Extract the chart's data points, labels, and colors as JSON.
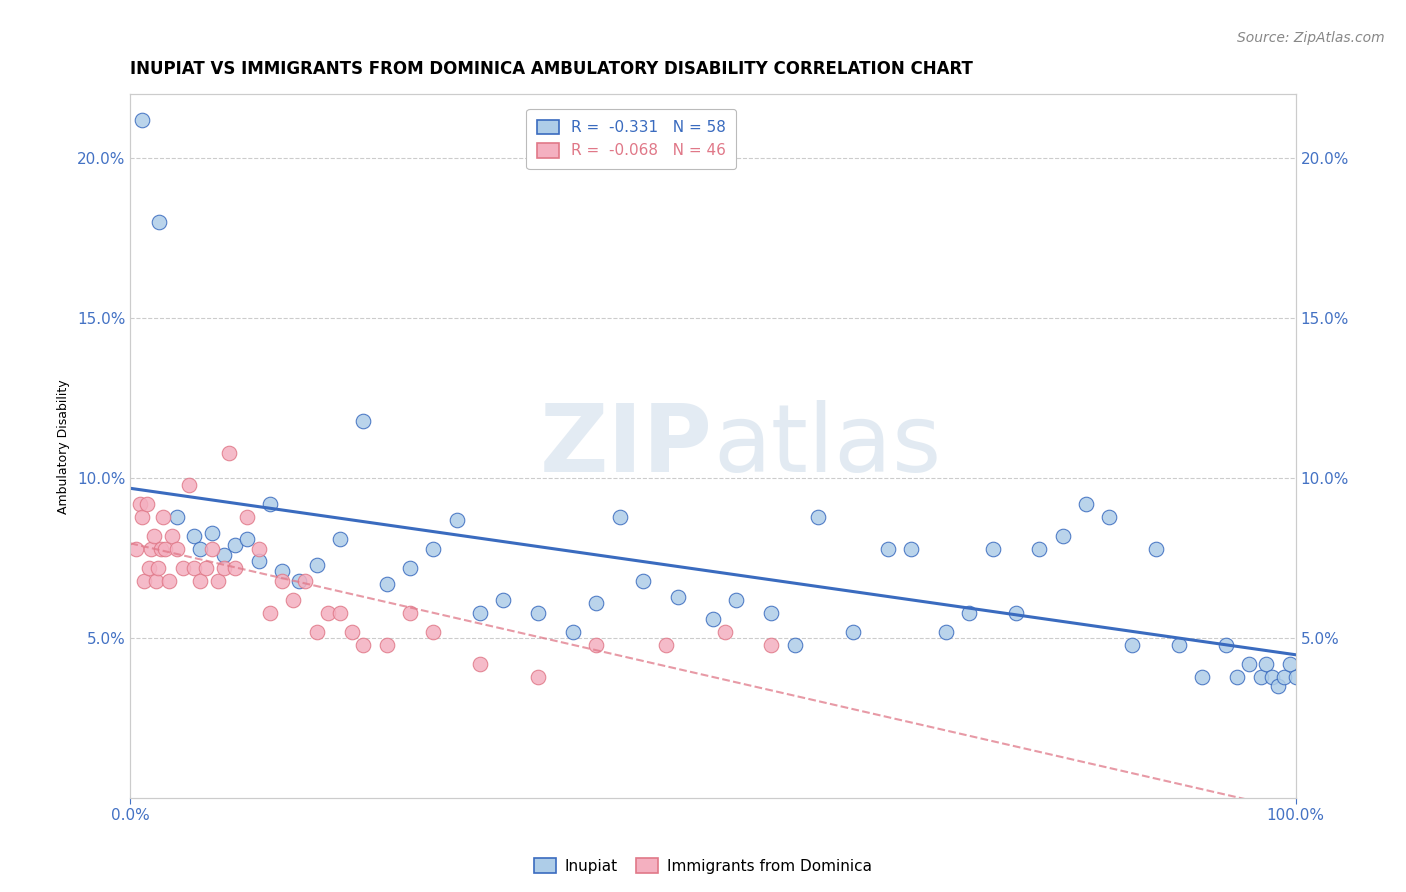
{
  "title": "INUPIAT VS IMMIGRANTS FROM DOMINICA AMBULATORY DISABILITY CORRELATION CHART",
  "source": "Source: ZipAtlas.com",
  "ylabel": "Ambulatory Disability",
  "legend_entry1": "R =  -0.331   N = 58",
  "legend_entry2": "R =  -0.068   N = 46",
  "legend_label1": "Inupiat",
  "legend_label2": "Immigrants from Dominica",
  "inupiat_color": "#aecde8",
  "dominica_color": "#f4b0c0",
  "trendline1_color": "#3a6bbf",
  "trendline2_color": "#e07888",
  "watermark_zip": "ZIP",
  "watermark_atlas": "atlas",
  "inupiat_x": [
    1.0,
    2.5,
    4.0,
    5.5,
    6.0,
    7.0,
    8.0,
    9.0,
    10.0,
    11.0,
    12.0,
    13.0,
    14.5,
    16.0,
    18.0,
    20.0,
    22.0,
    24.0,
    26.0,
    28.0,
    30.0,
    32.0,
    35.0,
    38.0,
    40.0,
    42.0,
    44.0,
    47.0,
    50.0,
    52.0,
    55.0,
    57.0,
    59.0,
    62.0,
    65.0,
    67.0,
    70.0,
    72.0,
    74.0,
    76.0,
    78.0,
    80.0,
    82.0,
    84.0,
    86.0,
    88.0,
    90.0,
    92.0,
    94.0,
    95.0,
    96.0,
    97.0,
    97.5,
    98.0,
    98.5,
    99.0,
    99.5,
    100.0
  ],
  "inupiat_y": [
    21.2,
    18.0,
    8.8,
    8.2,
    7.8,
    8.3,
    7.6,
    7.9,
    8.1,
    7.4,
    9.2,
    7.1,
    6.8,
    7.3,
    8.1,
    11.8,
    6.7,
    7.2,
    7.8,
    8.7,
    5.8,
    6.2,
    5.8,
    5.2,
    6.1,
    8.8,
    6.8,
    6.3,
    5.6,
    6.2,
    5.8,
    4.8,
    8.8,
    5.2,
    7.8,
    7.8,
    5.2,
    5.8,
    7.8,
    5.8,
    7.8,
    8.2,
    9.2,
    8.8,
    4.8,
    7.8,
    4.8,
    3.8,
    4.8,
    3.8,
    4.2,
    3.8,
    4.2,
    3.8,
    3.5,
    3.8,
    4.2,
    3.8
  ],
  "dominica_x": [
    0.5,
    0.8,
    1.0,
    1.2,
    1.4,
    1.6,
    1.8,
    2.0,
    2.2,
    2.4,
    2.6,
    2.8,
    3.0,
    3.3,
    3.6,
    4.0,
    4.5,
    5.0,
    5.5,
    6.0,
    6.5,
    7.0,
    7.5,
    8.0,
    8.5,
    9.0,
    10.0,
    11.0,
    12.0,
    13.0,
    14.0,
    15.0,
    16.0,
    17.0,
    18.0,
    19.0,
    20.0,
    22.0,
    24.0,
    26.0,
    30.0,
    35.0,
    40.0,
    46.0,
    51.0,
    55.0
  ],
  "dominica_y": [
    7.8,
    9.2,
    8.8,
    6.8,
    9.2,
    7.2,
    7.8,
    8.2,
    6.8,
    7.2,
    7.8,
    8.8,
    7.8,
    6.8,
    8.2,
    7.8,
    7.2,
    9.8,
    7.2,
    6.8,
    7.2,
    7.8,
    6.8,
    7.2,
    10.8,
    7.2,
    8.8,
    7.8,
    5.8,
    6.8,
    6.2,
    6.8,
    5.2,
    5.8,
    5.8,
    5.2,
    4.8,
    4.8,
    5.8,
    5.2,
    4.2,
    3.8,
    4.8,
    4.8,
    5.2,
    4.8
  ],
  "xlim": [
    0,
    100
  ],
  "ylim": [
    0,
    22
  ],
  "yticks": [
    5.0,
    10.0,
    15.0,
    20.0
  ],
  "yticklabels": [
    "5.0%",
    "10.0%",
    "15.0%",
    "20.0%"
  ],
  "xticks": [
    0,
    100
  ],
  "xticklabels": [
    "0.0%",
    "100.0%"
  ],
  "right_yticks": [
    5.0,
    10.0,
    15.0,
    20.0
  ],
  "right_yticklabels": [
    "5.0%",
    "10.0%",
    "15.0%",
    "20.0%"
  ],
  "title_fontsize": 12,
  "source_fontsize": 10,
  "axis_label_fontsize": 9,
  "tick_fontsize": 11,
  "legend_fontsize": 11
}
